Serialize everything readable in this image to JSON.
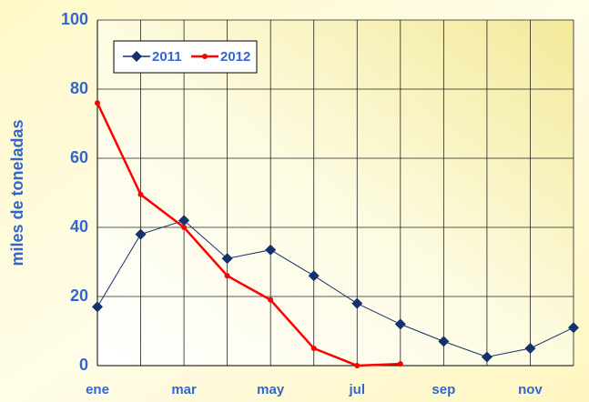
{
  "chart_data": {
    "type": "line",
    "y_label": "miles de toneladas",
    "categories": [
      "ene",
      null,
      "mar",
      null,
      "may",
      null,
      "jul",
      null,
      "sep",
      null,
      "nov",
      null
    ],
    "series": [
      {
        "name": "2011",
        "color": "#15316b",
        "marker": "diamond",
        "values": [
          17,
          38,
          42,
          31,
          33.5,
          26,
          18,
          12,
          7,
          2.5,
          5,
          11
        ]
      },
      {
        "name": "2012",
        "color": "#ff0000",
        "marker": "circle",
        "values": [
          76,
          49.5,
          40,
          26,
          19,
          5,
          0,
          0.5,
          null,
          null,
          null,
          null
        ]
      }
    ],
    "ylim": [
      0,
      100
    ],
    "yticks": [
      0,
      20,
      40,
      60,
      80,
      100
    ],
    "grid": true,
    "legend": "upper left"
  }
}
